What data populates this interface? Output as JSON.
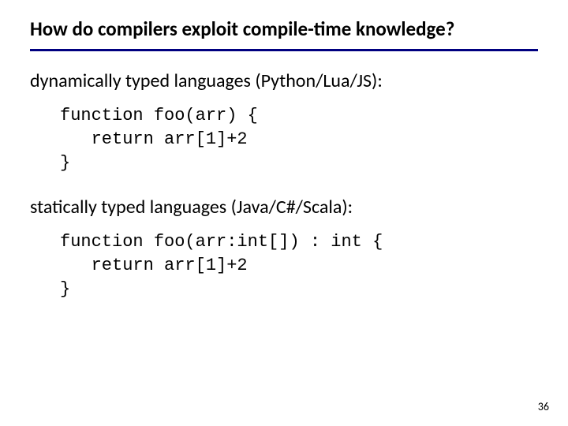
{
  "title": "How do compilers exploit compile-time knowledge?",
  "title_fontsize": 25,
  "title_color": "#000000",
  "rule_color": "#000080",
  "body_fontsize": 24,
  "code_fontsize": 22,
  "section1": {
    "text": "dynamically typed languages (Python/Lua/JS):",
    "code": "function foo(arr) {\n   return arr[1]+2\n}"
  },
  "section2": {
    "text": "statically typed languages (Java/C#/Scala):",
    "code": "function foo(arr:int[]) : int {\n   return arr[1]+2\n}"
  },
  "page_number": "36",
  "background_color": "#ffffff"
}
